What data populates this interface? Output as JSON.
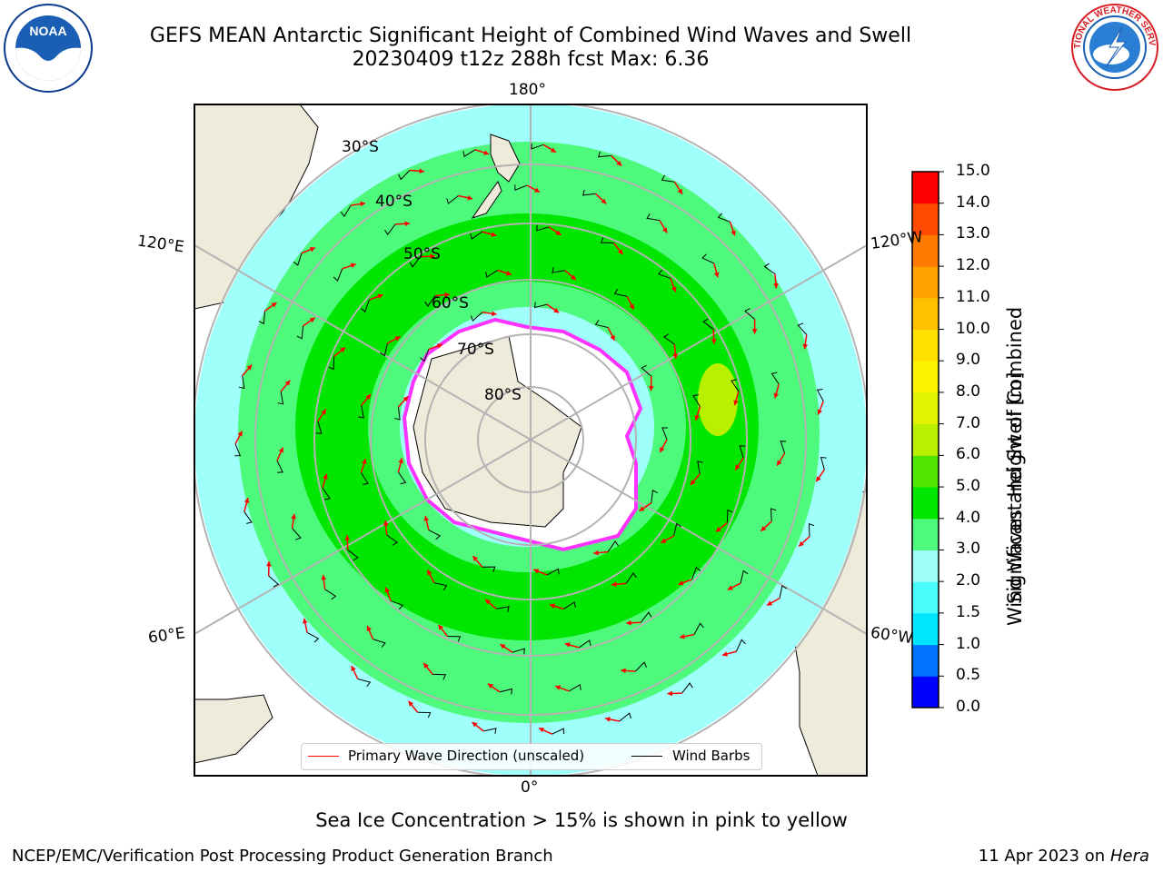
{
  "header": {
    "title_line1": "GEFS MEAN Antarctic Significant Height of Combined Wind Waves and Swell",
    "title_line2": "20230409 t12z 288h fcst   Max: 6.36"
  },
  "logos": {
    "left": "NOAA",
    "right": "NATIONAL WEATHER SERVICE"
  },
  "map": {
    "longitude_labels": {
      "top": "180°",
      "bottom": "0°",
      "upper_left": "120°E",
      "upper_right": "120°W",
      "lower_left": "60°E",
      "lower_right": "60°W"
    },
    "latitude_labels": [
      "30°S",
      "40°S",
      "50°S",
      "60°S",
      "70°S",
      "80°S"
    ]
  },
  "legend": {
    "primary_wave": "Primary Wave Direction (unscaled)",
    "wind_barbs": "Wind Barbs"
  },
  "colorbar": {
    "label_line1": "Significant Height of Combined",
    "label_line2": "Wind Waves and Swell [m]",
    "ticks": [
      "0.0",
      "0.5",
      "1.0",
      "1.5",
      "2.0",
      "3.0",
      "4.0",
      "5.0",
      "6.0",
      "7.0",
      "8.0",
      "9.0",
      "10.0",
      "11.0",
      "12.0",
      "13.0",
      "14.0",
      "15.0"
    ],
    "colors": [
      "#0000ff",
      "#0073ff",
      "#00e6ff",
      "#49fcfc",
      "#9efffb",
      "#4dfa7b",
      "#00e600",
      "#50e600",
      "#b8f000",
      "#e1f300",
      "#fbf500",
      "#ffe100",
      "#ffc000",
      "#ffa000",
      "#ff7a00",
      "#ff4a00",
      "#ff0000"
    ]
  },
  "footer": {
    "note": "Sea Ice Concentration > 15% is shown in pink to yellow",
    "left": "NCEP/EMC/Verification Post Processing Product Generation Branch",
    "right_date": "11 Apr 2023 on ",
    "right_host": "Hera"
  }
}
